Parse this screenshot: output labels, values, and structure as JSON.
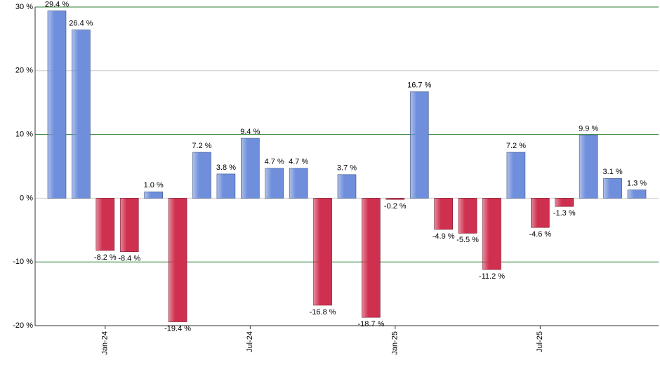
{
  "chart_data": {
    "type": "bar",
    "categories": [
      null,
      null,
      "Jan-24",
      null,
      null,
      null,
      null,
      null,
      "Jul-24",
      null,
      null,
      null,
      null,
      null,
      "Jan-25",
      null,
      null,
      null,
      null,
      null,
      "Jul-25",
      null,
      null,
      null,
      null
    ],
    "values": [
      29.4,
      26.4,
      -8.2,
      -8.4,
      1.0,
      -19.4,
      7.2,
      3.8,
      9.4,
      4.7,
      4.7,
      -16.8,
      3.7,
      -18.7,
      -0.2,
      16.7,
      -4.9,
      -5.5,
      -11.2,
      7.2,
      -4.6,
      -1.3,
      9.9,
      3.1,
      1.3
    ],
    "value_labels": [
      "29.4 %",
      "26.4 %",
      "-8.2 %",
      "-8.4 %",
      "1.0 %",
      "-19.4 %",
      "7.2 %",
      "3.8 %",
      "9.4 %",
      "4.7 %",
      "4.7 %",
      "-16.8 %",
      "3.7 %",
      "-18.7 %",
      "-0.2 %",
      "16.7 %",
      "-4.9 %",
      "-5.5 %",
      "-11.2 %",
      "7.2 %",
      "-4.6 %",
      "-1.3 %",
      "9.9 %",
      "3.1 %",
      "1.3 %"
    ],
    "positive_color": "#6f8fdc",
    "negative_color": "#d0304f",
    "ylim": [
      -20,
      30
    ],
    "yticks": [
      {
        "value": -20,
        "label": "-20 %"
      },
      {
        "value": -10,
        "label": "-10 %"
      },
      {
        "value": 0,
        "label": "0 %"
      },
      {
        "value": 10,
        "label": "10 %"
      },
      {
        "value": 20,
        "label": "20 %"
      },
      {
        "value": 30,
        "label": "30 %"
      }
    ],
    "grid": true,
    "grid_color": "#cccccc",
    "major_grid_color": "#2e7d32"
  }
}
